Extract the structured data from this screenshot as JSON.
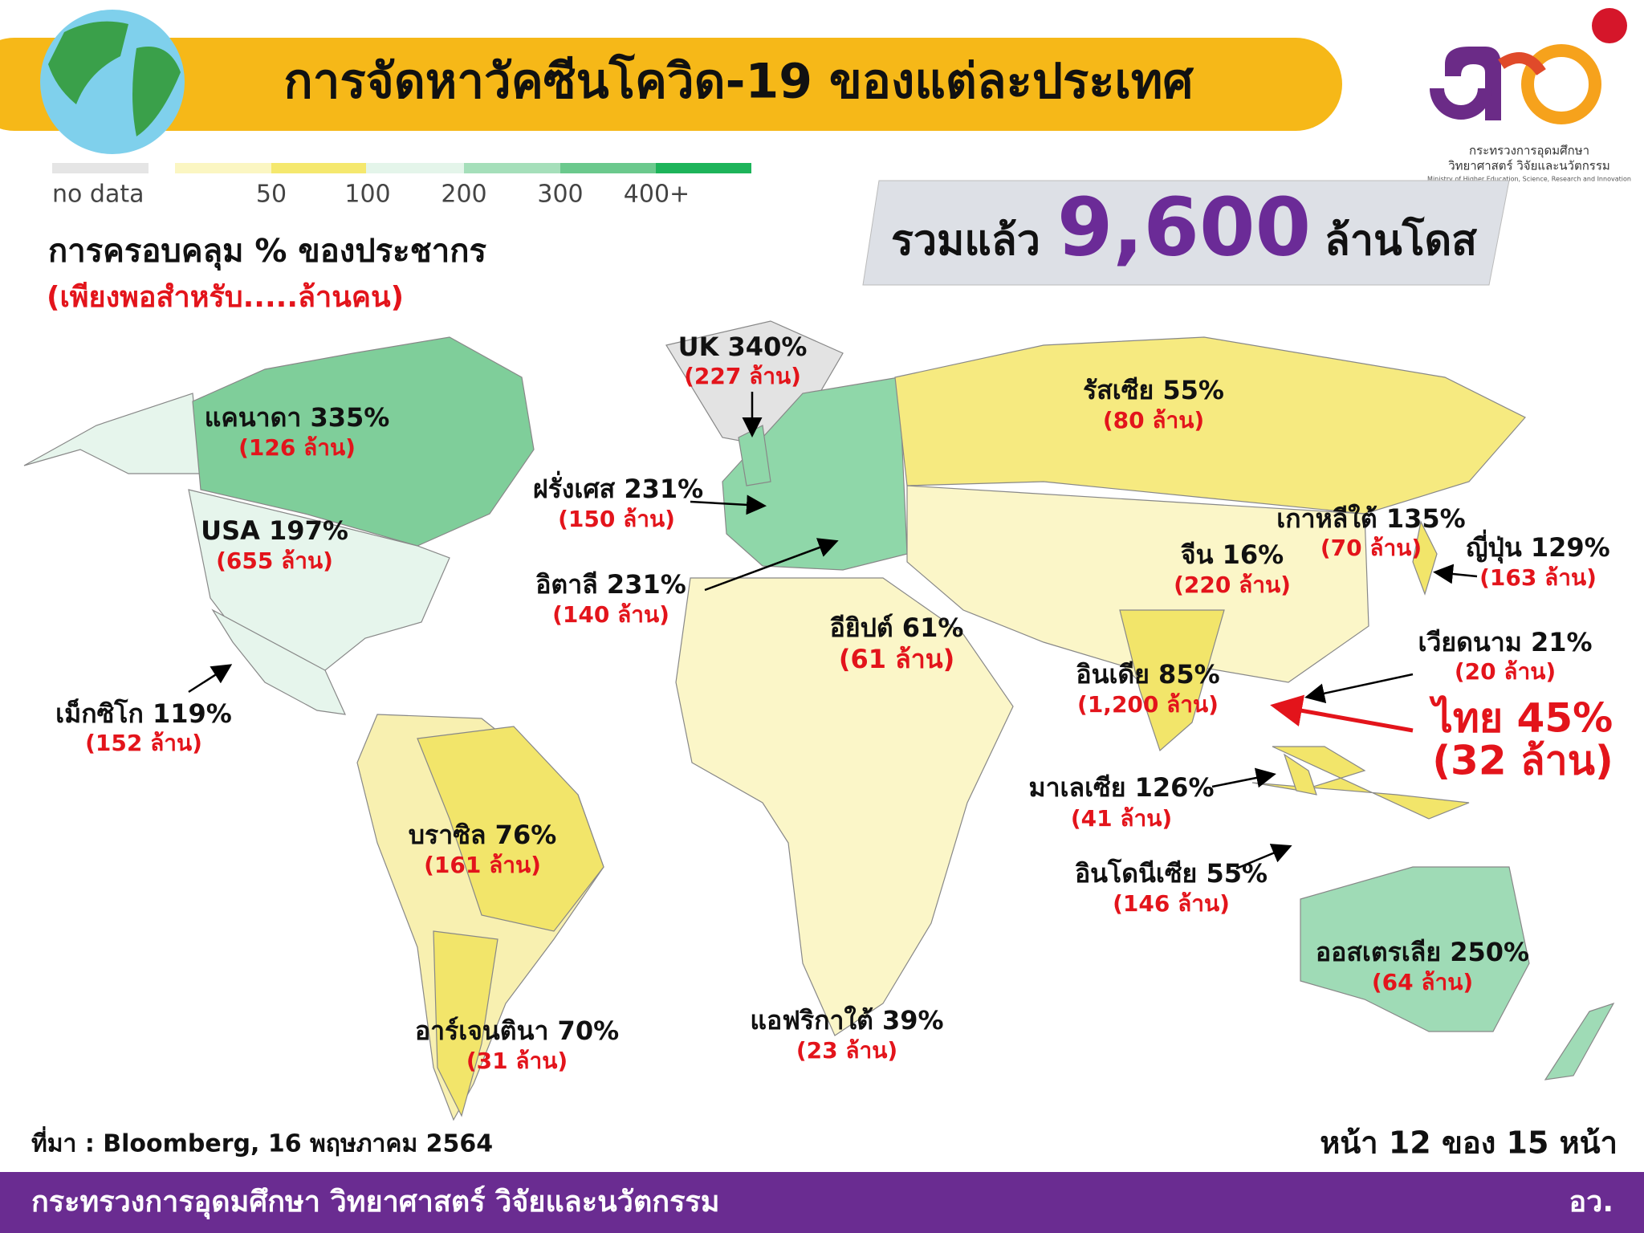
{
  "header": {
    "title": "การจัดหาวัคซีนโควิด-19 ของแต่ละประเทศ"
  },
  "logo": {
    "line1": "กระทรวงการอุดมศึกษา",
    "line2": "วิทยาศาสตร์ วิจัยและนวัตกรรม",
    "line3": "Ministry of Higher Education, Science, Research and Innovation"
  },
  "legend": {
    "items": [
      "no data",
      "50",
      "100",
      "200",
      "300",
      "400+"
    ]
  },
  "subtitle": "การครอบคลุม % ของประชากร",
  "subtitle_note": "(เพียงพอสำหรับ.....ล้านคน)",
  "total": {
    "prefix": "รวมแล้ว",
    "value": "9,600",
    "unit": "ล้านโดส"
  },
  "countries": [
    {
      "label": "UK 340%",
      "doses": "(227 ล้าน)"
    },
    {
      "label": "รัสเซีย 55%",
      "doses": "(80 ล้าน)"
    },
    {
      "label": "แคนาดา 335%",
      "doses": "(126 ล้าน)"
    },
    {
      "label": "ฝรั่งเศส 231%",
      "doses": "(150 ล้าน)"
    },
    {
      "label": "USA 197%",
      "doses": "(655 ล้าน)"
    },
    {
      "label": "เกาหลีใต้ 135%",
      "doses": "(70 ล้าน)"
    },
    {
      "label": "จีน 16%",
      "doses": "(220 ล้าน)"
    },
    {
      "label": "ญี่ปุ่น 129%",
      "doses": "(163 ล้าน)"
    },
    {
      "label": "อิตาลี 231%",
      "doses": "(140 ล้าน)"
    },
    {
      "label": "อียิปต์ 61%",
      "doses": "(61 ล้าน)"
    },
    {
      "label": "เวียดนาม 21%",
      "doses": "(20 ล้าน)"
    },
    {
      "label": "อินเดีย 85%",
      "doses": "(1,200 ล้าน)"
    },
    {
      "label": "เม็กซิโก 119%",
      "doses": "(152 ล้าน)"
    },
    {
      "label": "ไทย 45%",
      "doses": "(32 ล้าน)"
    },
    {
      "label": "มาเลเซีย 126%",
      "doses": "(41 ล้าน)"
    },
    {
      "label": "บราซิล 76%",
      "doses": "(161 ล้าน)"
    },
    {
      "label": "อินโดนีเซีย 55%",
      "doses": "(146 ล้าน)"
    },
    {
      "label": "ออสเตรเลีย 250%",
      "doses": "(64 ล้าน)"
    },
    {
      "label": "แอฟริกาใต้ 39%",
      "doses": "(23 ล้าน)"
    },
    {
      "label": "อาร์เจนตินา 70%",
      "doses": "(31 ล้าน)"
    }
  ],
  "source": "ที่มา : Bloomberg, 16 พฤษภาคม 2564",
  "page": "หน้า 12 ของ 15 หน้า",
  "footer": {
    "ministry": "กระทรวงการอุดมศึกษา วิทยาศาสตร์ วิจัยและนวัตกรรม",
    "short": "อว."
  }
}
